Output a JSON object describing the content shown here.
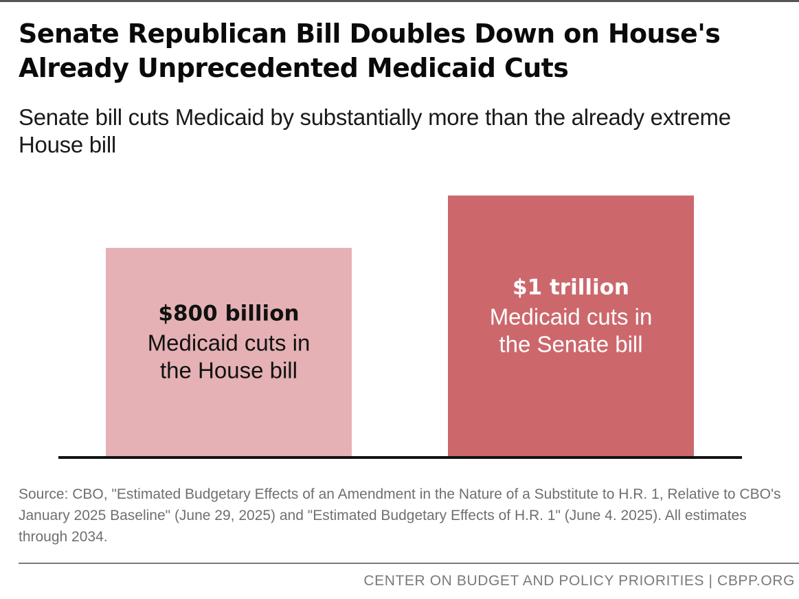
{
  "title": "Senate Republican Bill Doubles Down on House's Already Unprecedented Medicaid Cuts",
  "subtitle": "Senate bill cuts Medicaid by substantially more than the already extreme House bill",
  "chart_data": {
    "type": "bar",
    "categories": [
      "House bill",
      "Senate bill"
    ],
    "values": [
      800,
      1000
    ],
    "units": "billion dollars",
    "data_labels": [
      {
        "value_text": "$800 billion",
        "lines": [
          "Medicaid cuts in",
          "the House bill"
        ]
      },
      {
        "value_text": "$1 trillion",
        "lines": [
          "Medicaid cuts in",
          "the Senate bill"
        ]
      }
    ],
    "colors": [
      "#e5b1b4",
      "#cc686c"
    ],
    "label_colors": [
      "#111111",
      "#ffffff"
    ],
    "baseline_color": "#111111",
    "xlabel": "",
    "ylabel": "",
    "grid": false,
    "legend": "none"
  },
  "source": "Source: CBO, \"Estimated Budgetary Effects of an Amendment in the Nature of a Substitute to H.R. 1, Relative to CBO's January 2025 Baseline\" (June 29, 2025) and \"Estimated Budgetary Effects of H.R. 1\" (June 4. 2025). All estimates through 2034.",
  "footer": "CENTER ON BUDGET AND POLICY PRIORITIES | CBPP.ORG"
}
